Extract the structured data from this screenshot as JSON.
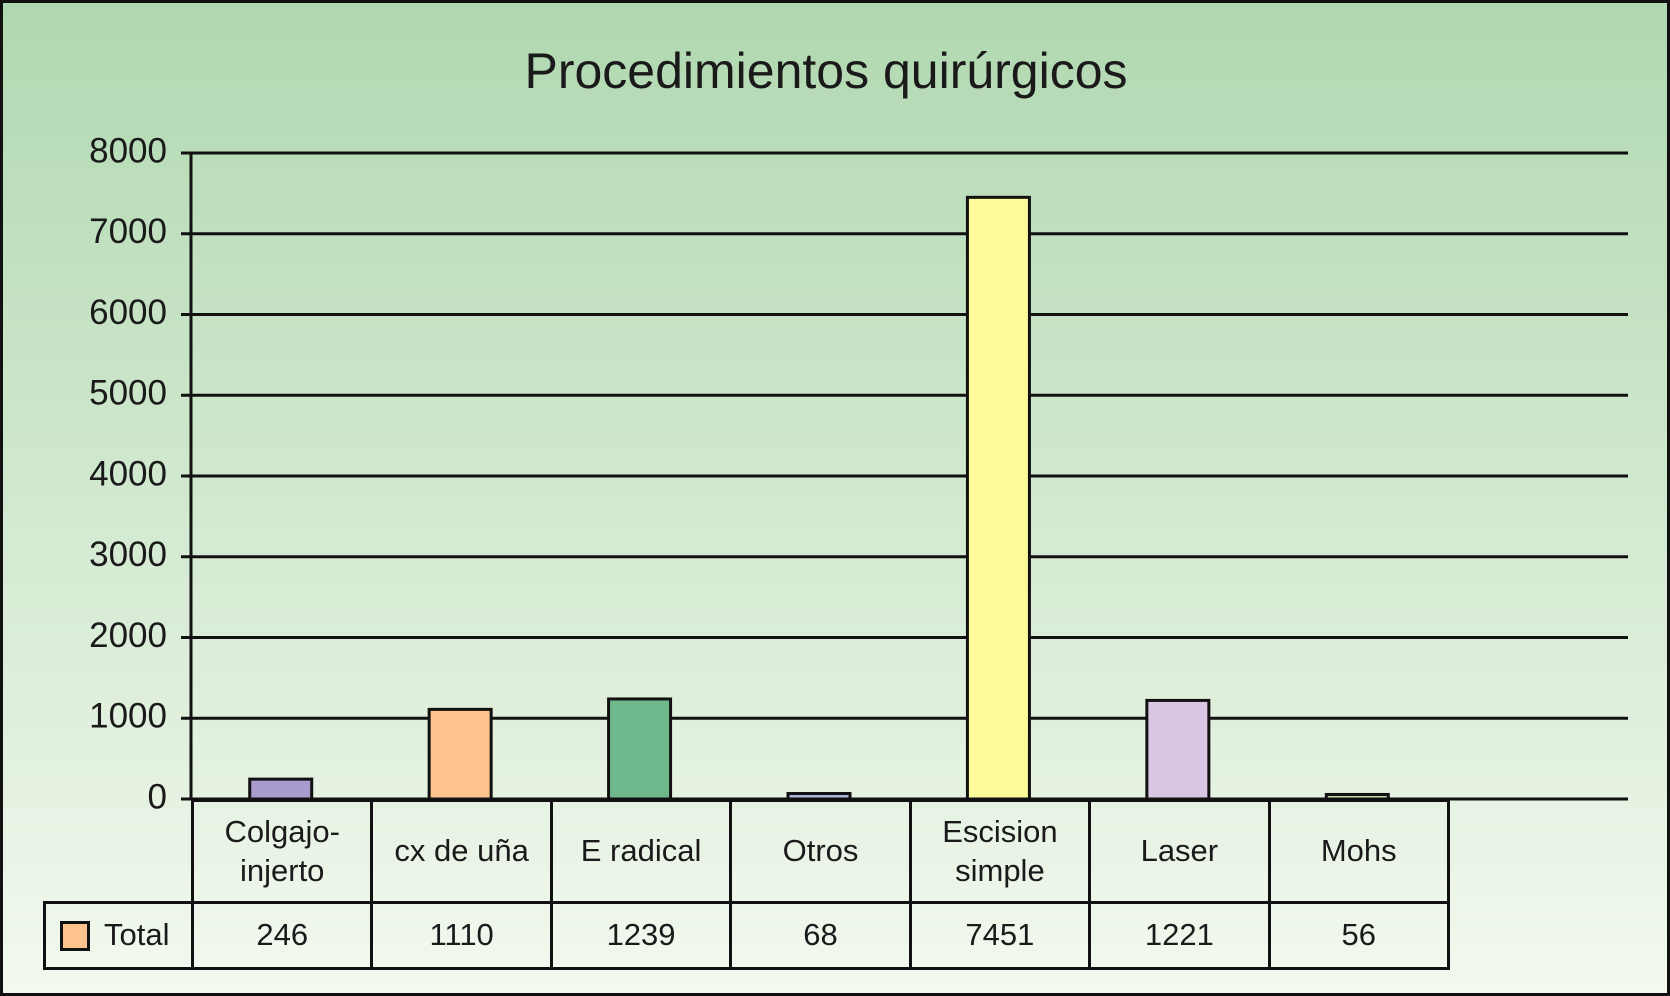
{
  "chart_data": {
    "type": "bar",
    "title": "Procedimientos quirúrgicos",
    "categories": [
      "Colgajo-injerto",
      "cx de uña",
      "E radical",
      "Otros",
      "Escision simple",
      "Laser",
      "Mohs"
    ],
    "series": [
      {
        "name": "Total",
        "color": "#fcc48c",
        "values": [
          246,
          1110,
          1239,
          68,
          7451,
          1221,
          56
        ]
      }
    ],
    "point_colors": [
      "#a99bcb",
      "#fcc48c",
      "#6fb88c",
      "#a9b8e0",
      "#fdfa9a",
      "#d8c6e2",
      "#c9d9a6"
    ],
    "ylim": [
      0,
      8000
    ],
    "yticks": [
      0,
      1000,
      2000,
      3000,
      4000,
      5000,
      6000,
      7000,
      8000
    ],
    "grid": true
  }
}
